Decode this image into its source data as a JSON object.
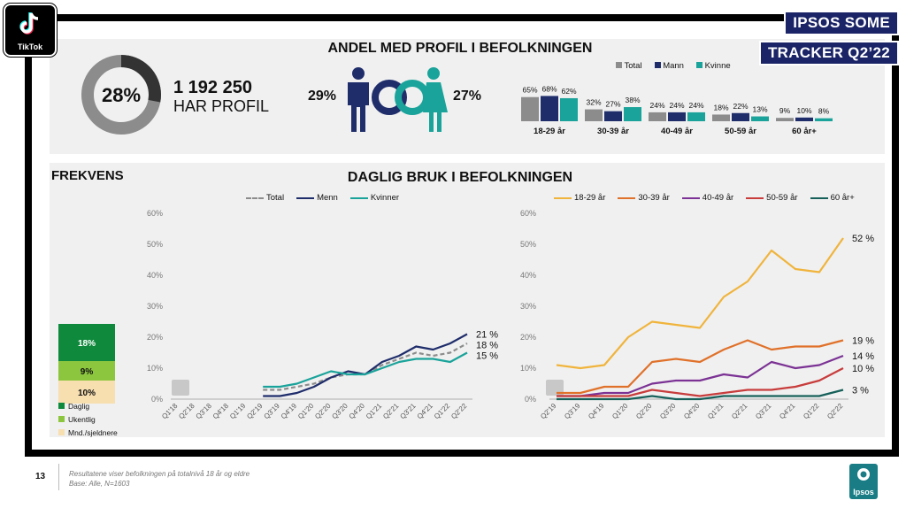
{
  "brand": {
    "tiktok_label": "TikTok",
    "ipsos_label": "Ipsos",
    "badge_line1": "IPSOS SOME",
    "badge_line2": "TRACKER Q2’22",
    "navy": "#1f2d6b",
    "teal": "#1aa39a",
    "grey": "#8c8c8c"
  },
  "profile": {
    "title": "ANDEL MED PROFIL I BEFOLKNINGEN",
    "share_pct": "28%",
    "share_value": 28,
    "count": "1 192 250",
    "count_label": "HAR PROFIL",
    "men_pct": "29%",
    "women_pct": "27%"
  },
  "frequency_title": "FREKVENS",
  "daily_title": "DAGLIG BRUK I BEFOLKNINGEN",
  "frequency": {
    "segments": [
      {
        "label": "18%",
        "value": 18,
        "color": "#0f8a3c"
      },
      {
        "label": "9%",
        "value": 9,
        "color": "#8cc63f"
      },
      {
        "label": "10%",
        "value": 10,
        "color": "#f7dfb0"
      }
    ],
    "legend": [
      {
        "label": "Daglig",
        "color": "#0f8a3c"
      },
      {
        "label": "Ukentlig",
        "color": "#8cc63f"
      },
      {
        "label": "Mnd./sjeldnere",
        "color": "#f7dfb0"
      }
    ]
  },
  "chart_data": [
    {
      "type": "bar",
      "title": "ANDEL MED PROFIL I BEFOLKNINGEN",
      "categories": [
        "18-29 år",
        "30-39 år",
        "40-49 år",
        "50-59 år",
        "60 år+"
      ],
      "series": [
        {
          "name": "Total",
          "color": "#8c8c8c",
          "values": [
            65,
            32,
            24,
            18,
            9
          ],
          "labels": [
            "65%",
            "32%",
            "24%",
            "18%",
            "9%"
          ]
        },
        {
          "name": "Mann",
          "color": "#1f2d6b",
          "values": [
            68,
            27,
            24,
            22,
            10
          ],
          "labels": [
            "68%",
            "27%",
            "24%",
            "22%",
            "10%"
          ]
        },
        {
          "name": "Kvinne",
          "color": "#1aa39a",
          "values": [
            62,
            38,
            24,
            13,
            8
          ],
          "labels": [
            "62%",
            "38%",
            "24%",
            "13%",
            "8%"
          ]
        }
      ]
    },
    {
      "type": "line",
      "title": "DAGLIG BRUK I BEFOLKNINGEN",
      "x": [
        "Q1'18",
        "Q2'18",
        "Q3'18",
        "Q4'18",
        "Q1'19",
        "Q2'19",
        "Q3'19",
        "Q4'19",
        "Q1'20",
        "Q2'20",
        "Q3'20",
        "Q4'20",
        "Q1'21",
        "Q2'21",
        "Q3'21",
        "Q4'21",
        "Q1'22",
        "Q2'22"
      ],
      "yticks": [
        "0%",
        "10%",
        "20%",
        "30%",
        "40%",
        "50%",
        "60%"
      ],
      "ylim": [
        0,
        60
      ],
      "series": [
        {
          "name": "Total",
          "color": "#8c8c8c",
          "dashed": true,
          "end_label": "18 %",
          "values": [
            null,
            null,
            null,
            null,
            null,
            3,
            3,
            4,
            5,
            7,
            8,
            8,
            11,
            13,
            15,
            14,
            15,
            18
          ]
        },
        {
          "name": "Menn",
          "color": "#1f2d6b",
          "dashed": false,
          "end_label": "21 %",
          "values": [
            null,
            null,
            null,
            null,
            null,
            1,
            1,
            2,
            4,
            7,
            9,
            8,
            12,
            14,
            17,
            16,
            18,
            21
          ]
        },
        {
          "name": "Kvinner",
          "color": "#1aa39a",
          "dashed": false,
          "end_label": "15 %",
          "values": [
            null,
            null,
            null,
            null,
            null,
            4,
            4,
            5,
            7,
            9,
            8,
            8,
            10,
            12,
            13,
            13,
            12,
            15
          ]
        }
      ]
    },
    {
      "type": "line",
      "title": "DAGLIG BRUK I BEFOLKNINGEN (alder)",
      "x": [
        "Q2'19",
        "Q3'19",
        "Q4'19",
        "Q1'20",
        "Q2'20",
        "Q3'20",
        "Q4'20",
        "Q1'21",
        "Q2'21",
        "Q3'21",
        "Q4'21",
        "Q1'22",
        "Q2'22"
      ],
      "yticks": [
        "0%",
        "10%",
        "20%",
        "30%",
        "40%",
        "50%",
        "60%"
      ],
      "ylim": [
        0,
        60
      ],
      "series": [
        {
          "name": "18-29 år",
          "color": "#f0b43c",
          "end_label": "52 %",
          "values": [
            11,
            10,
            11,
            20,
            25,
            24,
            23,
            33,
            38,
            48,
            42,
            41,
            52
          ]
        },
        {
          "name": "30-39 år",
          "color": "#e0712a",
          "end_label": "19 %",
          "values": [
            2,
            2,
            4,
            4,
            12,
            13,
            12,
            16,
            19,
            16,
            17,
            17,
            19
          ]
        },
        {
          "name": "40-49 år",
          "color": "#7b3294",
          "end_label": "14 %",
          "values": [
            1,
            1,
            2,
            2,
            5,
            6,
            6,
            8,
            7,
            12,
            10,
            11,
            14
          ]
        },
        {
          "name": "50-59 år",
          "color": "#c83c3c",
          "end_label": "10 %",
          "values": [
            1,
            1,
            1,
            1,
            3,
            2,
            1,
            2,
            3,
            3,
            4,
            6,
            10
          ]
        },
        {
          "name": "60 år+",
          "color": "#17605a",
          "end_label": "3 %",
          "values": [
            0,
            0,
            0,
            0,
            1,
            0,
            0,
            1,
            1,
            1,
            1,
            1,
            3
          ]
        }
      ]
    }
  ],
  "footer": {
    "page_number": "13",
    "note_line1": "Resultatene viser befolkningen på totalnivå 18 år og eldre",
    "note_line2": "Base: Alle, N=1603"
  }
}
